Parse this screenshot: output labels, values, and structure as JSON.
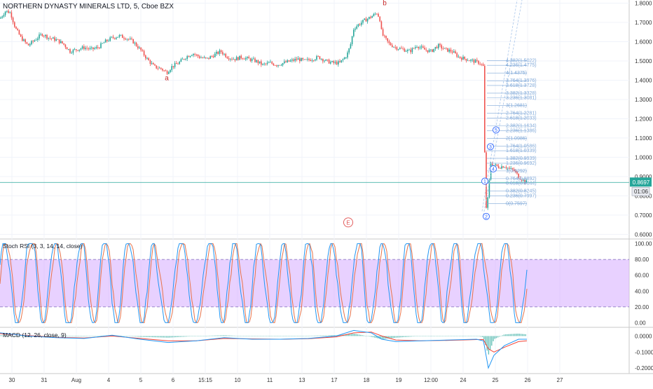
{
  "chart_data": {
    "type": "candlestick",
    "title": "NORTHERN DYNASTY MINERALS LTD, 5, Cboe BZX",
    "price_axis": {
      "ylim": [
        0.5795,
        1.8165
      ],
      "ticks": [
        "1.8000",
        "1.7000",
        "1.6000",
        "1.5000",
        "1.4000",
        "1.3000",
        "1.2000",
        "1.1000",
        "1.0000",
        "0.9000",
        "0.8000",
        "0.7000",
        "0.6000"
      ],
      "last_price_label": "0.8697",
      "countdown_label": "01:06",
      "last_price": 0.8697
    },
    "time_axis": {
      "labels": [
        "30",
        "31",
        "Aug",
        "4",
        "5",
        "6",
        "15:15",
        "10",
        "11",
        "13",
        "17",
        "18",
        "19",
        "12:00",
        "24",
        "25",
        "26",
        "27"
      ]
    },
    "price_series": [
      [
        0,
        1.72
      ],
      [
        8,
        1.76
      ],
      [
        15,
        1.75
      ],
      [
        22,
        1.67
      ],
      [
        30,
        1.62
      ],
      [
        40,
        1.58
      ],
      [
        50,
        1.61
      ],
      [
        60,
        1.64
      ],
      [
        70,
        1.62
      ],
      [
        80,
        1.61
      ],
      [
        90,
        1.59
      ],
      [
        100,
        1.55
      ],
      [
        110,
        1.56
      ],
      [
        120,
        1.57
      ],
      [
        130,
        1.56
      ],
      [
        140,
        1.57
      ],
      [
        150,
        1.6
      ],
      [
        160,
        1.62
      ],
      [
        170,
        1.63
      ],
      [
        180,
        1.62
      ],
      [
        190,
        1.6
      ],
      [
        200,
        1.56
      ],
      [
        210,
        1.51
      ],
      [
        220,
        1.47
      ],
      [
        230,
        1.46
      ],
      [
        238,
        1.44
      ],
      [
        245,
        1.47
      ],
      [
        255,
        1.49
      ],
      [
        265,
        1.52
      ],
      [
        275,
        1.54
      ],
      [
        285,
        1.52
      ],
      [
        295,
        1.51
      ],
      [
        305,
        1.53
      ],
      [
        315,
        1.55
      ],
      [
        325,
        1.52
      ],
      [
        335,
        1.51
      ],
      [
        345,
        1.52
      ],
      [
        355,
        1.51
      ],
      [
        365,
        1.5
      ],
      [
        375,
        1.48
      ],
      [
        385,
        1.49
      ],
      [
        395,
        1.48
      ],
      [
        405,
        1.49
      ],
      [
        415,
        1.5
      ],
      [
        425,
        1.51
      ],
      [
        435,
        1.5
      ],
      [
        445,
        1.51
      ],
      [
        455,
        1.52
      ],
      [
        465,
        1.5
      ],
      [
        475,
        1.49
      ],
      [
        485,
        1.49
      ],
      [
        495,
        1.53
      ],
      [
        500,
        1.58
      ],
      [
        505,
        1.67
      ],
      [
        512,
        1.69
      ],
      [
        520,
        1.71
      ],
      [
        530,
        1.73
      ],
      [
        538,
        1.75
      ],
      [
        542,
        1.72
      ],
      [
        545,
        1.64
      ],
      [
        555,
        1.59
      ],
      [
        565,
        1.57
      ],
      [
        575,
        1.56
      ],
      [
        585,
        1.55
      ],
      [
        595,
        1.58
      ],
      [
        605,
        1.56
      ],
      [
        615,
        1.55
      ],
      [
        625,
        1.58
      ],
      [
        635,
        1.56
      ],
      [
        645,
        1.55
      ],
      [
        655,
        1.52
      ],
      [
        665,
        1.51
      ],
      [
        675,
        1.5
      ],
      [
        685,
        1.49
      ],
      [
        690,
        1.47
      ],
      [
        693,
        0.72
      ],
      [
        697,
        0.8
      ],
      [
        700,
        0.97
      ],
      [
        705,
        0.96
      ],
      [
        712,
        0.95
      ],
      [
        720,
        0.955
      ],
      [
        727,
        0.94
      ],
      [
        734,
        0.93
      ],
      [
        740,
        0.9
      ],
      [
        747,
        0.88
      ],
      [
        752,
        0.87
      ]
    ],
    "annotations": [
      {
        "label": "a",
        "x": 238,
        "y": 1.4
      },
      {
        "label": "b",
        "x": 549,
        "y": 1.79
      },
      {
        "label": "E",
        "x": 497,
        "y": 0.662
      }
    ],
    "wave_labels": [
      {
        "label": "1",
        "x": 692,
        "y": 0.876
      },
      {
        "label": "2",
        "x": 694,
        "y": 0.693
      },
      {
        "label": "3",
        "x": 700,
        "y": 1.055
      },
      {
        "label": "4",
        "x": 704,
        "y": 0.94
      },
      {
        "label": "5",
        "x": 708,
        "y": 1.142
      }
    ],
    "fib_levels": [
      {
        "label": "4.382(1.5022)",
        "value": 1.5022
      },
      {
        "label": "4.236(1.4775)",
        "value": 1.4775
      },
      {
        "label": "4(1.4375)",
        "value": 1.4375
      },
      {
        "label": "3.764(1.3976)",
        "value": 1.3976
      },
      {
        "label": "3.618(1.3728)",
        "value": 1.3728
      },
      {
        "label": "3.382(1.3328)",
        "value": 1.3328
      },
      {
        "label": "3.236(1.3081)",
        "value": 1.3081
      },
      {
        "label": "3(1.2681)",
        "value": 1.2681
      },
      {
        "label": "2.764(1.2281)",
        "value": 1.2281
      },
      {
        "label": "2.618(1.2033)",
        "value": 1.2033
      },
      {
        "label": "2.382(1.1634)",
        "value": 1.1634
      },
      {
        "label": "2.236(1.1386)",
        "value": 1.1386
      },
      {
        "label": "2(1.0986)",
        "value": 1.0986
      },
      {
        "label": "1.764(1.0586)",
        "value": 1.0586
      },
      {
        "label": "1.618(1.0339)",
        "value": 1.0339
      },
      {
        "label": "1.382(0.9939)",
        "value": 0.9939
      },
      {
        "label": "1.236(0.9692)",
        "value": 0.9692
      },
      {
        "label": "1(0.9292)",
        "value": 0.9292
      },
      {
        "label": "0.764(0.8892)",
        "value": 0.8892
      },
      {
        "label": "0.618(0.8644)",
        "value": 0.8644
      },
      {
        "label": "0.382(0.8245)",
        "value": 0.8245
      },
      {
        "label": "0.236(0.7997)",
        "value": 0.7997
      },
      {
        "label": "0(0.7597)",
        "value": 0.7597
      }
    ],
    "stoch_rsi": {
      "label": "Stoch RSI (3, 3, 14, 14, close)",
      "ylim": [
        -5,
        105
      ],
      "ticks": [
        "100.00",
        "80.00",
        "60.00",
        "40.00",
        "20.00",
        "0.00"
      ],
      "upper_band": 80,
      "lower_band": 20,
      "colors": {
        "k": "#2196f3",
        "d": "#e8734a",
        "band": "#d9b3ff"
      }
    },
    "macd": {
      "label": "MACD (12, 26, close, 9)",
      "ylim": [
        -0.23,
        0.05
      ],
      "ticks": [
        "0.0000",
        "-0.1000",
        "-0.2000"
      ],
      "colors": {
        "macd": "#2196f3",
        "signal": "#f44336",
        "hist": "#26a69a"
      },
      "macd_series": [
        [
          0,
          0.02
        ],
        [
          40,
          0.0
        ],
        [
          80,
          -0.01
        ],
        [
          120,
          -0.015
        ],
        [
          160,
          0.005
        ],
        [
          200,
          -0.02
        ],
        [
          240,
          -0.04
        ],
        [
          280,
          -0.03
        ],
        [
          320,
          -0.01
        ],
        [
          360,
          -0.02
        ],
        [
          400,
          -0.02
        ],
        [
          440,
          -0.015
        ],
        [
          480,
          0.0
        ],
        [
          505,
          0.035
        ],
        [
          530,
          0.02
        ],
        [
          545,
          -0.02
        ],
        [
          565,
          -0.035
        ],
        [
          600,
          -0.03
        ],
        [
          640,
          -0.025
        ],
        [
          680,
          -0.02
        ],
        [
          690,
          -0.03
        ],
        [
          697,
          -0.2
        ],
        [
          705,
          -0.12
        ],
        [
          720,
          -0.06
        ],
        [
          740,
          -0.02
        ],
        [
          752,
          -0.02
        ]
      ],
      "signal_series": [
        [
          0,
          0.015
        ],
        [
          40,
          0.003
        ],
        [
          80,
          -0.008
        ],
        [
          120,
          -0.012
        ],
        [
          160,
          0.0
        ],
        [
          200,
          -0.015
        ],
        [
          240,
          -0.03
        ],
        [
          280,
          -0.03
        ],
        [
          320,
          -0.015
        ],
        [
          360,
          -0.018
        ],
        [
          400,
          -0.02
        ],
        [
          440,
          -0.017
        ],
        [
          480,
          -0.005
        ],
        [
          505,
          0.02
        ],
        [
          530,
          0.025
        ],
        [
          545,
          0.0
        ],
        [
          565,
          -0.025
        ],
        [
          600,
          -0.03
        ],
        [
          640,
          -0.027
        ],
        [
          680,
          -0.022
        ],
        [
          690,
          -0.022
        ],
        [
          697,
          -0.08
        ],
        [
          705,
          -0.1
        ],
        [
          720,
          -0.07
        ],
        [
          740,
          -0.035
        ],
        [
          752,
          -0.03
        ]
      ]
    }
  }
}
